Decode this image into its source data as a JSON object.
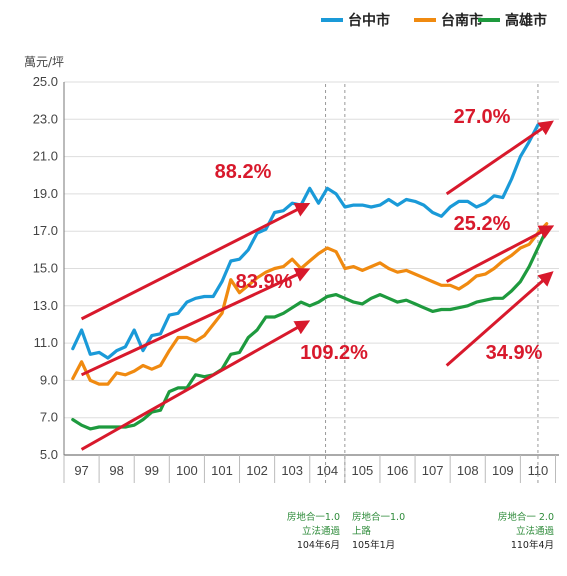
{
  "colors": {
    "台中市": "#1a9ad8",
    "台南市": "#f08a10",
    "高雄市": "#1e9a3e",
    "arrow": "#d8192c",
    "growth_label": "#d8192c",
    "note": "#2e8b3a",
    "axis": "#777777",
    "grid": "#dddddd"
  },
  "chart_data": {
    "type": "line",
    "ylabel": "萬元/坪",
    "ylim": [
      5.0,
      25.0
    ],
    "yticks": [
      "5.0",
      "7.0",
      "9.0",
      "11.0",
      "13.0",
      "15.0",
      "17.0",
      "19.0",
      "21.0",
      "23.0",
      "25.0"
    ],
    "xlim": [
      96.5,
      110.6
    ],
    "xtick_labels": [
      "97",
      "98",
      "99",
      "100",
      "101",
      "102",
      "103",
      "104",
      "105",
      "106",
      "107",
      "108",
      "109",
      "110"
    ],
    "legend": [
      "台中市",
      "台南市",
      "高雄市"
    ],
    "legend_position": "top-right",
    "x": [
      96.75,
      97.0,
      97.25,
      97.5,
      97.75,
      98.0,
      98.25,
      98.5,
      98.75,
      99.0,
      99.25,
      99.5,
      99.75,
      100.0,
      100.25,
      100.5,
      100.75,
      101.0,
      101.25,
      101.5,
      101.75,
      102.0,
      102.25,
      102.5,
      102.75,
      103.0,
      103.25,
      103.5,
      103.75,
      104.0,
      104.25,
      104.5,
      104.75,
      105.0,
      105.25,
      105.5,
      105.75,
      106.0,
      106.25,
      106.5,
      106.75,
      107.0,
      107.25,
      107.5,
      107.75,
      108.0,
      108.25,
      108.5,
      108.75,
      109.0,
      109.25,
      109.5,
      109.75,
      110.0,
      110.25
    ],
    "series": [
      {
        "name": "台中市",
        "values": [
          10.7,
          11.7,
          10.4,
          10.5,
          10.2,
          10.6,
          10.8,
          11.7,
          10.6,
          11.4,
          11.5,
          12.5,
          12.6,
          13.2,
          13.4,
          13.5,
          13.5,
          14.3,
          15.4,
          15.5,
          16.0,
          16.9,
          17.1,
          18.0,
          18.1,
          18.5,
          18.4,
          19.3,
          18.5,
          19.3,
          19.0,
          18.3,
          18.4,
          18.4,
          18.3,
          18.4,
          18.7,
          18.4,
          18.7,
          18.6,
          18.4,
          18.0,
          17.8,
          18.3,
          18.6,
          18.6,
          18.3,
          18.5,
          18.9,
          18.8,
          19.8,
          21.0,
          21.8,
          22.7,
          22.7
        ]
      },
      {
        "name": "台南市",
        "values": [
          9.1,
          10.0,
          9.0,
          8.8,
          8.8,
          9.4,
          9.3,
          9.5,
          9.8,
          9.6,
          9.8,
          10.6,
          11.3,
          11.3,
          11.1,
          11.4,
          12.0,
          12.6,
          14.4,
          13.7,
          14.1,
          14.5,
          14.8,
          15.0,
          15.1,
          15.5,
          15.0,
          15.4,
          15.8,
          16.1,
          15.9,
          15.0,
          15.1,
          14.9,
          15.1,
          15.3,
          15.0,
          14.8,
          14.9,
          14.7,
          14.5,
          14.3,
          14.1,
          14.1,
          13.9,
          14.2,
          14.6,
          14.7,
          15.0,
          15.4,
          15.7,
          16.1,
          16.3,
          16.9,
          17.4
        ]
      },
      {
        "name": "高雄市",
        "values": [
          6.9,
          6.6,
          6.4,
          6.5,
          6.5,
          6.5,
          6.5,
          6.6,
          6.9,
          7.3,
          7.4,
          8.4,
          8.6,
          8.6,
          9.3,
          9.2,
          9.3,
          9.6,
          10.4,
          10.5,
          11.3,
          11.7,
          12.4,
          12.4,
          12.6,
          12.9,
          13.2,
          13.0,
          13.2,
          13.5,
          13.6,
          13.4,
          13.2,
          13.1,
          13.4,
          13.6,
          13.4,
          13.2,
          13.3,
          13.1,
          12.9,
          12.7,
          12.8,
          12.8,
          12.9,
          13.0,
          13.2,
          13.3,
          13.4,
          13.4,
          13.8,
          14.3,
          15.1,
          16.1,
          17.1
        ]
      }
    ],
    "growth_annotations": [
      {
        "label": "88.2%",
        "from": [
          97.0,
          12.3
        ],
        "to": [
          103.4,
          18.4
        ]
      },
      {
        "label": "83.9%",
        "from": [
          97.0,
          9.3
        ],
        "to": [
          103.4,
          14.9
        ]
      },
      {
        "label": "109.2%",
        "from": [
          97.0,
          5.3
        ],
        "to": [
          103.4,
          12.1
        ]
      },
      {
        "label": "27.0%",
        "from": [
          107.4,
          19.0
        ],
        "to": [
          110.35,
          22.8
        ]
      },
      {
        "label": "25.2%",
        "from": [
          107.4,
          14.3
        ],
        "to": [
          110.35,
          17.2
        ]
      },
      {
        "label": "34.9%",
        "from": [
          107.4,
          9.8
        ],
        "to": [
          110.35,
          14.7
        ]
      }
    ],
    "reference_lines": [
      {
        "x": 103.95,
        "note": [
          "房地合一1.0",
          "立法通過",
          "104年6月"
        ]
      },
      {
        "x": 104.5,
        "note": [
          "房地合一1.0",
          "上路",
          "105年1月"
        ]
      },
      {
        "x": 110.0,
        "note": [
          "房地合一 2.0",
          "立法通過",
          "110年4月"
        ]
      }
    ]
  }
}
